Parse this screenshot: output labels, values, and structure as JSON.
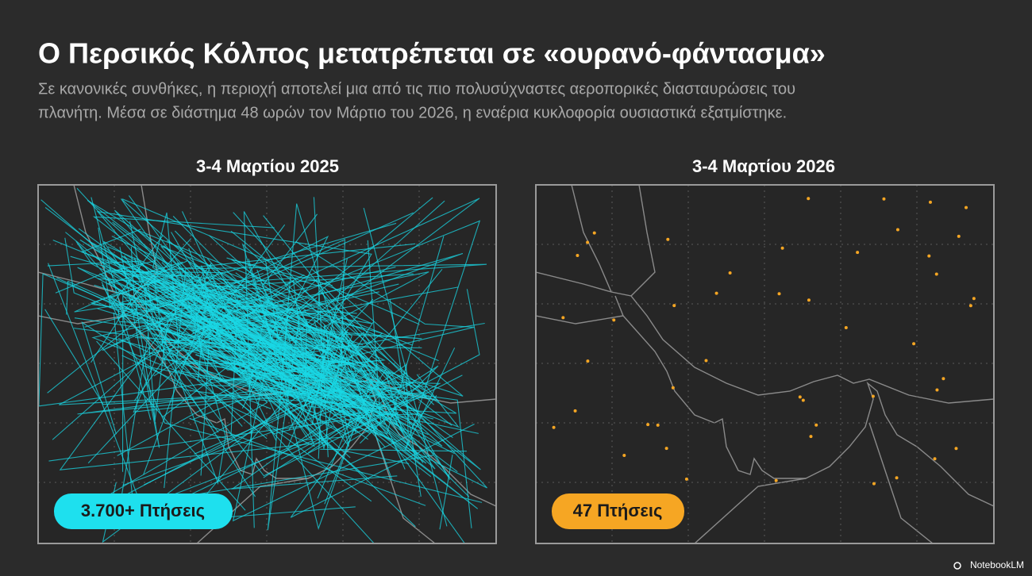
{
  "header": {
    "title": "Ο Περσικός Κόλπος μετατρέπεται σε «ουρανό-φάντασμα»",
    "subtitle_lines": [
      "Σε κανονικές συνθήκες, η περιοχή αποτελεί μια από τις πιο πολυσύχναστες αεροπορικές διασταυρώσεις του",
      "πλανήτη. Μέσα σε διάστημα 48 ωρών τον Μάρτιο του 2026, η εναέρια κυκλοφορία ουσιαστικά εξατμίστηκε."
    ]
  },
  "panels": [
    {
      "title": "3-4 Μαρτίου 2025",
      "badge": "3.700+ Πτήσεις"
    },
    {
      "title": "3-4 Μαρτίου 2026",
      "badge": "47 Πτήσεις"
    }
  ],
  "footer": {
    "brand": "NotebookLM"
  }
}
